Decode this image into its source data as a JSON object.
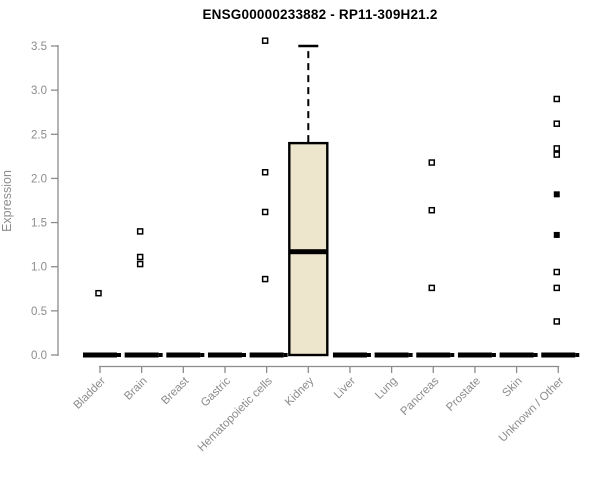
{
  "chart_data": {
    "type": "box",
    "title": "ENSG00000233882 - RP11-309H21.2",
    "ylabel": "Expression",
    "xlabel": "",
    "ylim": [
      0,
      3.5
    ],
    "yticks": [
      "0.0",
      "0.5",
      "1.0",
      "1.5",
      "2.0",
      "2.5",
      "3.0",
      "3.5"
    ],
    "grid": false,
    "legend": "none",
    "marker": "open-square",
    "colors": {
      "box_fill": "#ede6cc",
      "box_stroke": "#000000",
      "median": "#000000",
      "axis": "#8c8c8c",
      "tick_label": "#8c8c8c",
      "title": "#000000",
      "background": "#ffffff"
    },
    "categories": [
      "Bladder",
      "Brain",
      "Breast",
      "Gastric",
      "Hematopoietic cells",
      "Kidney",
      "Liver",
      "Lung",
      "Pancreas",
      "Prostate",
      "Skin",
      "Unknown / Other"
    ],
    "boxes": [
      {
        "category": "Bladder",
        "q1": 0,
        "median": 0,
        "q3": 0,
        "whisker_low": 0,
        "whisker_high": 0,
        "outliers": [
          0.7
        ]
      },
      {
        "category": "Brain",
        "q1": 0,
        "median": 0,
        "q3": 0,
        "whisker_low": 0,
        "whisker_high": 0,
        "outliers": [
          1.4,
          1.11,
          1.03
        ]
      },
      {
        "category": "Breast",
        "q1": 0,
        "median": 0,
        "q3": 0,
        "whisker_low": 0,
        "whisker_high": 0,
        "outliers": []
      },
      {
        "category": "Gastric",
        "q1": 0,
        "median": 0,
        "q3": 0,
        "whisker_low": 0,
        "whisker_high": 0,
        "outliers": []
      },
      {
        "category": "Hematopoietic cells",
        "q1": 0,
        "median": 0,
        "q3": 0,
        "whisker_low": 0,
        "whisker_high": 0,
        "outliers": [
          3.56,
          2.07,
          1.62,
          0.86
        ]
      },
      {
        "category": "Kidney",
        "q1": 0,
        "median": 1.17,
        "q3": 2.4,
        "whisker_low": 0,
        "whisker_high": 3.5,
        "outliers": []
      },
      {
        "category": "Liver",
        "q1": 0,
        "median": 0,
        "q3": 0,
        "whisker_low": 0,
        "whisker_high": 0,
        "outliers": []
      },
      {
        "category": "Lung",
        "q1": 0,
        "median": 0,
        "q3": 0,
        "whisker_low": 0,
        "whisker_high": 0,
        "outliers": []
      },
      {
        "category": "Pancreas",
        "q1": 0,
        "median": 0,
        "q3": 0,
        "whisker_low": 0,
        "whisker_high": 0,
        "outliers": [
          2.18,
          1.64,
          0.76
        ]
      },
      {
        "category": "Prostate",
        "q1": 0,
        "median": 0,
        "q3": 0,
        "whisker_low": 0,
        "whisker_high": 0,
        "outliers": []
      },
      {
        "category": "Skin",
        "q1": 0,
        "median": 0,
        "q3": 0,
        "whisker_low": 0,
        "whisker_high": 0,
        "outliers": []
      },
      {
        "category": "Unknown / Other",
        "q1": 0,
        "median": 0,
        "q3": 0,
        "whisker_low": 0,
        "whisker_high": 0,
        "outliers": [
          2.9,
          2.62,
          2.34,
          2.27,
          0.94,
          0.76,
          0.38
        ],
        "outliers_solid": [
          1.82,
          1.36
        ]
      }
    ]
  }
}
